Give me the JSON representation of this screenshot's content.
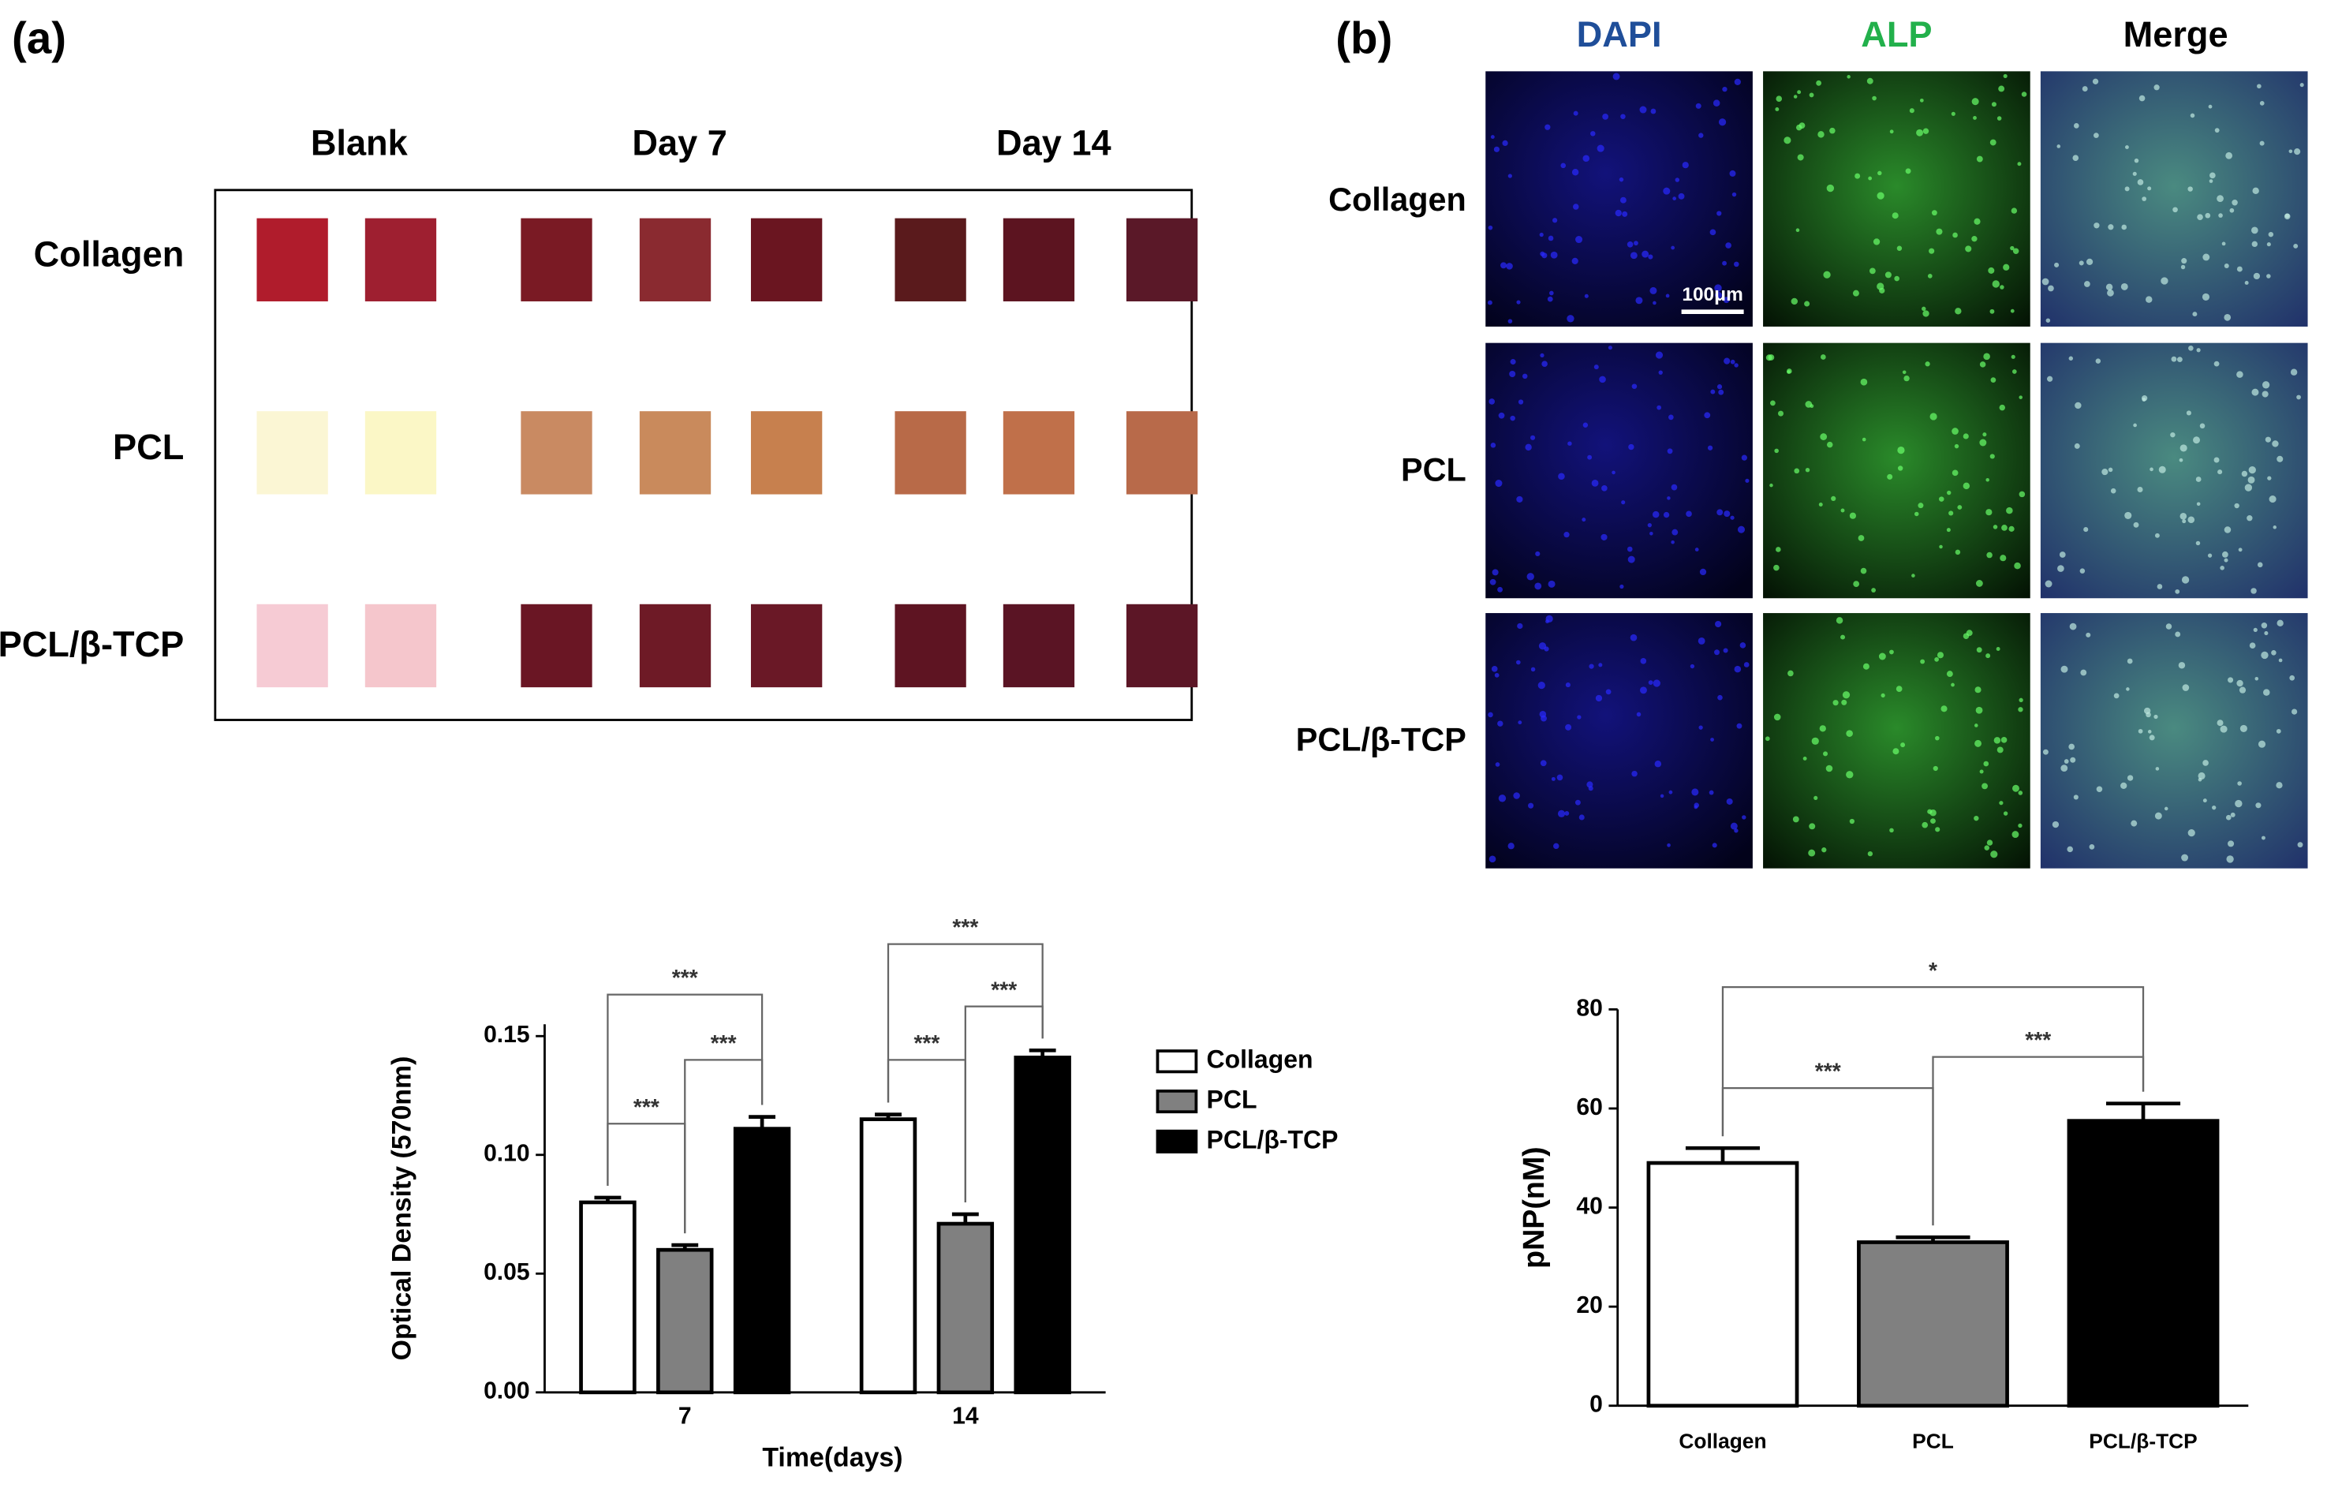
{
  "panel_labels": [
    "(a)",
    "(b)"
  ],
  "photo_grid": {
    "columns": [
      "Blank",
      "Day 7",
      "Day 14"
    ],
    "rows": [
      "Collagen",
      "PCL",
      "PCL/β-TCP"
    ]
  },
  "microscopy": {
    "columns": [
      "DAPI",
      "ALP",
      "Merge"
    ],
    "rows": [
      "Collagen",
      "PCL",
      "PCL/β-TCP"
    ],
    "scale_bar": "100μm"
  },
  "chart_data": [
    {
      "type": "bar",
      "xlabel": "Time(days)",
      "ylabel": "Optical Density (570nm)",
      "categories": [
        "7",
        "14"
      ],
      "series": [
        {
          "name": "Collagen",
          "color": "#ffffff",
          "values": [
            0.08,
            0.115
          ],
          "errors": [
            0.002,
            0.002
          ]
        },
        {
          "name": "PCL",
          "color": "#808080",
          "values": [
            0.06,
            0.071
          ],
          "errors": [
            0.002,
            0.004
          ]
        },
        {
          "name": "PCL/β-TCP",
          "color": "#000000",
          "values": [
            0.111,
            0.141
          ],
          "errors": [
            0.005,
            0.003
          ]
        }
      ],
      "ylim": [
        0,
        0.155
      ],
      "yticks": [
        {
          "value": 0,
          "label": "0.00"
        },
        0.05,
        {
          "value": 0.1,
          "label": "0.10"
        },
        0.15
      ],
      "annotations": [
        "***",
        "***",
        "***",
        "***",
        "***",
        "***"
      ],
      "legend": "right"
    },
    {
      "type": "bar",
      "ylabel": "pNP(nM)",
      "categories": [
        "Collagen",
        "PCL",
        "PCL/β-TCP"
      ],
      "values": [
        49,
        33,
        57.5
      ],
      "errors": [
        3,
        1,
        3.5
      ],
      "colors": [
        "#ffffff",
        "#808080",
        "#000000"
      ],
      "ylim": [
        0,
        80
      ],
      "yticks": [
        0,
        20,
        40,
        60,
        80
      ],
      "annotations": [
        "*",
        "***",
        "***"
      ]
    }
  ]
}
